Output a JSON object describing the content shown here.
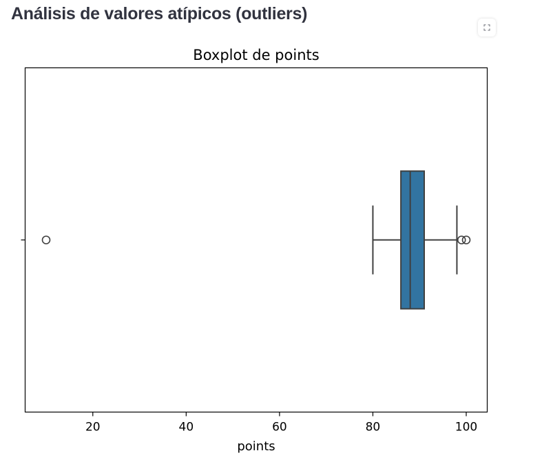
{
  "header": {
    "title": "Análisis de valores atípicos (outliers)"
  },
  "toolbar": {
    "fullscreen_icon": "fullscreen-icon"
  },
  "chart_data": {
    "type": "boxplot",
    "orientation": "horizontal",
    "title": "Boxplot de points",
    "xlabel": "points",
    "ylabel": "",
    "xlim": [
      5.5,
      104.5
    ],
    "xticks": [
      20,
      40,
      60,
      80,
      100
    ],
    "grid": false,
    "box_color": "#3274a1",
    "edge_color": "#3f3f3f",
    "stats": {
      "whisker_low": 80,
      "q1": 86,
      "median": 88,
      "q3": 91,
      "whisker_high": 98
    },
    "outliers": [
      10,
      99,
      100
    ]
  }
}
